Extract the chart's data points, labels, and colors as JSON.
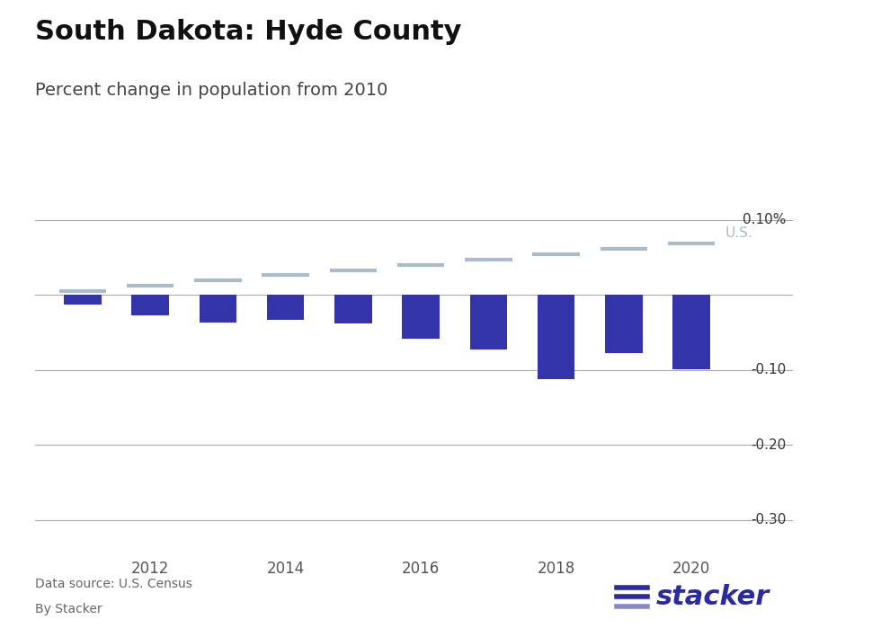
{
  "title": "South Dakota: Hyde County",
  "subtitle": "Percent change in population from 2010",
  "bar_years": [
    2011,
    2012,
    2013,
    2014,
    2015,
    2016,
    2017,
    2018,
    2019,
    2020
  ],
  "bar_values": [
    -0.013,
    -0.027,
    -0.037,
    -0.033,
    -0.038,
    -0.058,
    -0.073,
    -0.112,
    -0.077,
    -0.0992
  ],
  "us_years": [
    2011,
    2012,
    2013,
    2014,
    2015,
    2016,
    2017,
    2018,
    2019,
    2020
  ],
  "us_values": [
    0.005,
    0.012,
    0.019,
    0.026,
    0.033,
    0.04,
    0.047,
    0.054,
    0.061,
    0.068
  ],
  "bar_color": "#3333AA",
  "us_line_color": "#AABBCC",
  "ylim_min": -0.335,
  "ylim_max": 0.125,
  "yticks": [
    0.1,
    0.0,
    -0.1,
    -0.2,
    -0.3
  ],
  "ytick_labels": [
    "0.10%",
    "",
    "-0.10",
    "-0.20",
    "-0.30"
  ],
  "background_color": "#ffffff",
  "data_source": "Data source: U.S. Census",
  "by_line": "By Stacker",
  "us_label": "U.S.",
  "title_fontsize": 22,
  "subtitle_fontsize": 14,
  "x_min": 2010.3,
  "x_max": 2021.5,
  "bar_width": 0.55
}
